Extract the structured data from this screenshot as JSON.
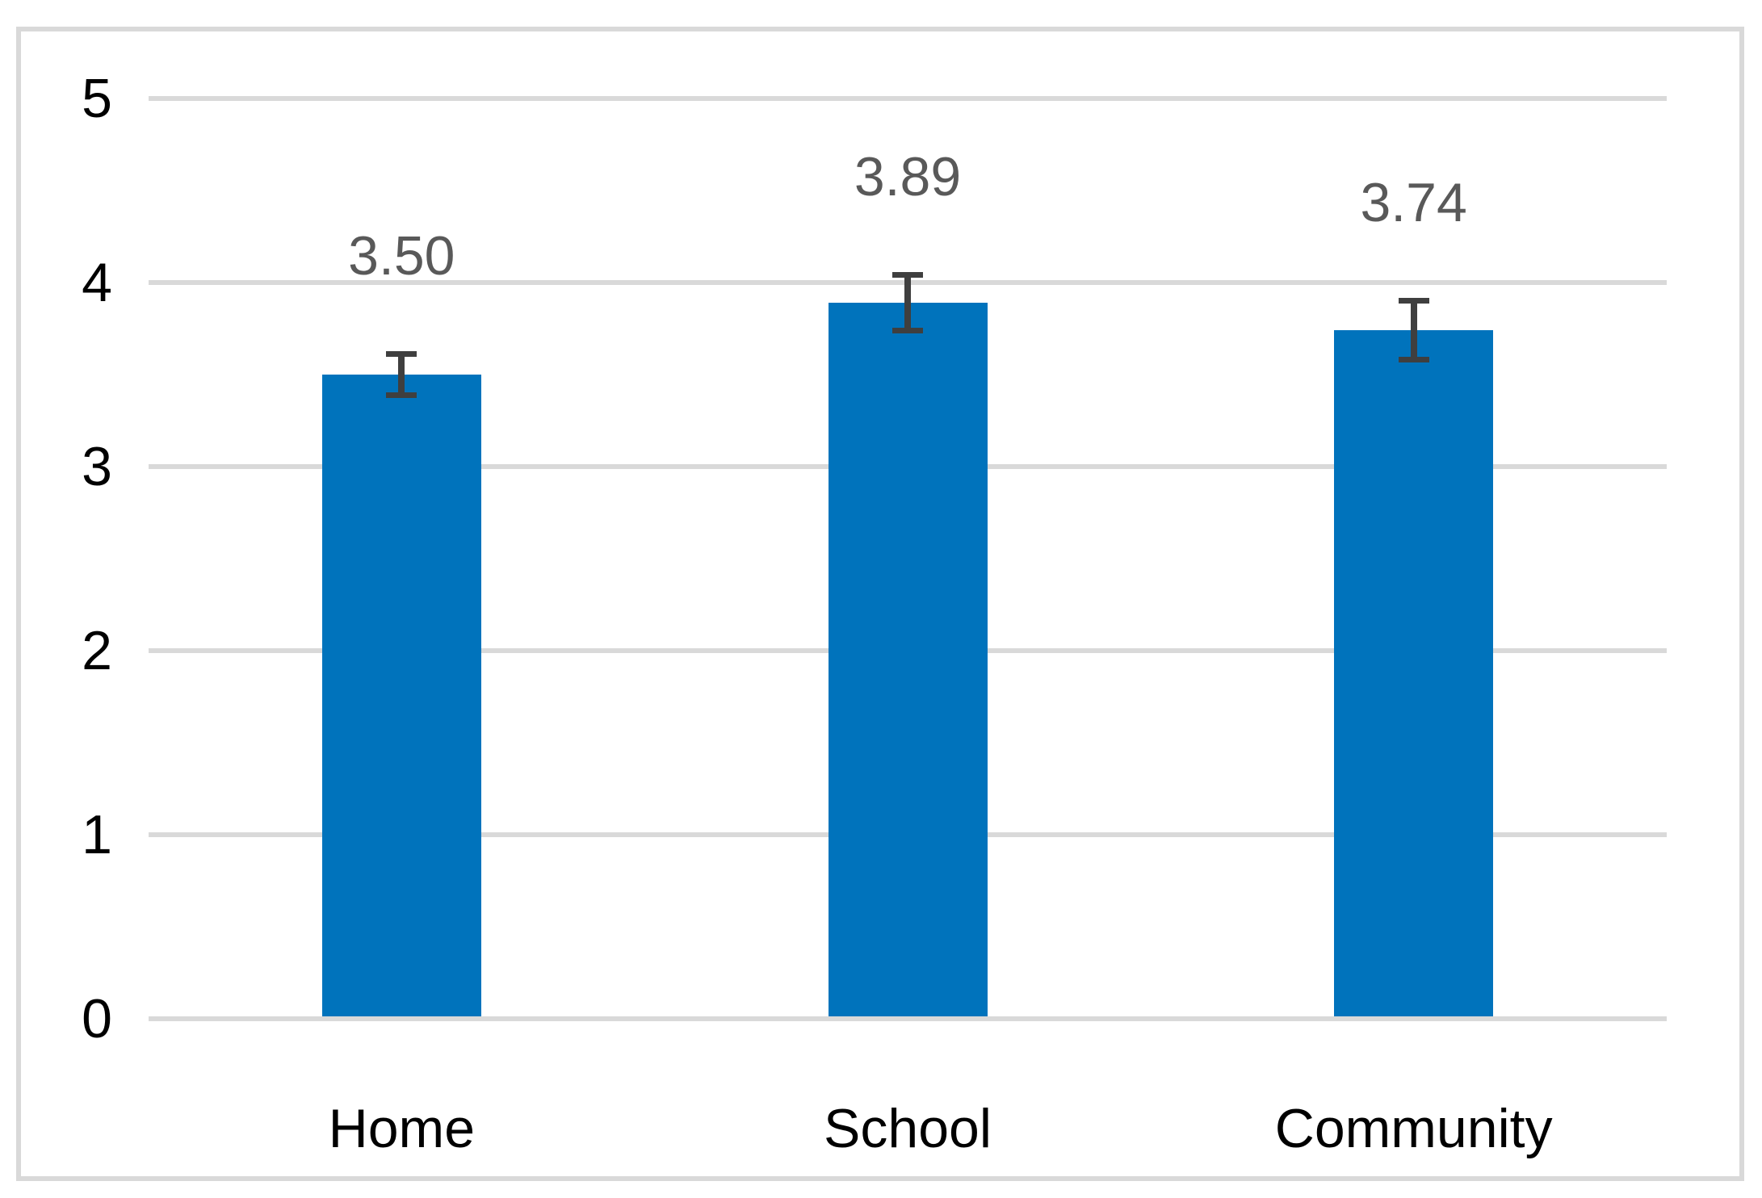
{
  "chart_data": {
    "type": "bar",
    "title": "",
    "xlabel": "",
    "ylabel": "",
    "categories": [
      "Home",
      "School",
      "Community"
    ],
    "values": [
      3.5,
      3.89,
      3.74
    ],
    "value_labels": [
      "3.50",
      "3.89",
      "3.74"
    ],
    "error_bars_plus_minus": [
      0.11,
      0.15,
      0.16
    ],
    "ylim": [
      0,
      5
    ],
    "yticks": [
      0,
      1,
      2,
      3,
      4,
      5
    ],
    "ytick_labels": [
      "0",
      "1",
      "2",
      "3",
      "4",
      "5"
    ],
    "grid": true,
    "legend": "none",
    "colors": {
      "bar": "#0073BC",
      "error_bar": "#3F3F3F",
      "data_label": "#595959",
      "axis_text": "#000000",
      "gridline": "#D9D9D9",
      "frame_border": "#D9D9D9",
      "background": "#FFFFFF"
    }
  }
}
